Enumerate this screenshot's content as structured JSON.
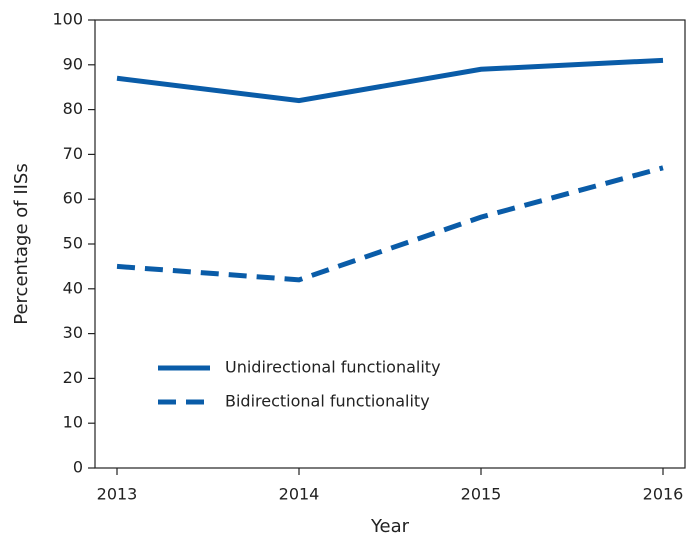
{
  "chart_data": {
    "type": "line",
    "xlabel": "Year",
    "ylabel": "Percentage of IISs",
    "categories": [
      "2013",
      "2014",
      "2015",
      "2016"
    ],
    "series": [
      {
        "name": "Unidirectional functionality",
        "color": "#0a5ca8",
        "line_style": "solid",
        "values": [
          87,
          82,
          89,
          91
        ]
      },
      {
        "name": "Bidirectional functionality",
        "color": "#0a5ca8",
        "line_style": "dashed",
        "values": [
          45,
          42,
          56,
          67
        ]
      }
    ],
    "ylim": [
      0,
      100
    ],
    "yticks": [
      0,
      10,
      20,
      30,
      40,
      50,
      60,
      70,
      80,
      90,
      100
    ],
    "grid": false,
    "legend": "lower left"
  }
}
